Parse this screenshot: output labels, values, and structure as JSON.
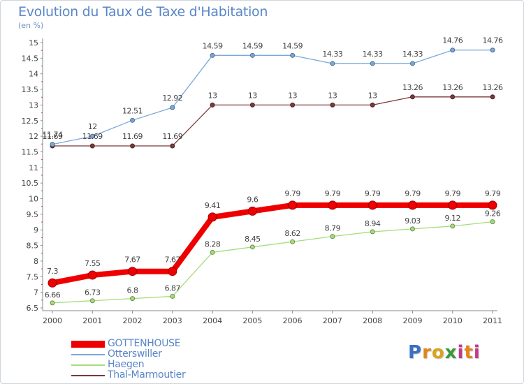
{
  "header": {
    "title": "Evolution du Taux de Taxe d'Habitation",
    "subtitle": "(en %)"
  },
  "logo": "Proxiti",
  "chart_data": {
    "type": "line",
    "title": "Evolution du Taux de Taxe d'Habitation",
    "subtitle": "(en %)",
    "x": [
      "2000",
      "2001",
      "2002",
      "2003",
      "2004",
      "2005",
      "2006",
      "2007",
      "2008",
      "2009",
      "2010",
      "2011"
    ],
    "ylim": [
      6.5,
      15
    ],
    "yticks": [
      "6.5",
      "7",
      "7.5",
      "8",
      "8.5",
      "9",
      "9.5",
      "10",
      "10.5",
      "11",
      "11.5",
      "12",
      "12.5",
      "13",
      "13.5",
      "14",
      "14.5",
      "15"
    ],
    "grid": false,
    "legend_position": "bottom-left",
    "series": [
      {
        "name": "GOTTENHOUSE",
        "color": "#ee0000",
        "values": [
          7.3,
          7.55,
          7.67,
          7.67,
          9.41,
          9.6,
          9.79,
          9.79,
          9.79,
          9.79,
          9.79,
          9.79
        ],
        "labels": [
          "7.3",
          "7.55",
          "7.67",
          "7.67",
          "9.41",
          "9.6",
          "9.79",
          "9.79",
          "9.79",
          "9.79",
          "9.79",
          "9.79"
        ]
      },
      {
        "name": "Otterswiller",
        "color": "#7aa8d8",
        "values": [
          11.74,
          12,
          12.51,
          12.92,
          14.59,
          14.59,
          14.59,
          14.33,
          14.33,
          14.33,
          14.76,
          14.76
        ],
        "labels": [
          "11.74",
          "12",
          "12.51",
          "12.92",
          "14.59",
          "14.59",
          "14.59",
          "14.33",
          "14.33",
          "14.33",
          "14.76",
          "14.76"
        ]
      },
      {
        "name": "Haegen",
        "color": "#a6dc7a",
        "values": [
          6.66,
          6.73,
          6.8,
          6.87,
          8.28,
          8.45,
          8.62,
          8.79,
          8.94,
          9.03,
          9.12,
          9.26
        ],
        "labels": [
          "6.66",
          "6.73",
          "6.8",
          "6.87",
          "8.28",
          "8.45",
          "8.62",
          "8.79",
          "8.94",
          "9.03",
          "9.12",
          "9.26"
        ]
      },
      {
        "name": "Thal-Marmoutier",
        "color": "#7a3a3a",
        "values": [
          11.69,
          11.69,
          11.69,
          11.69,
          13,
          13,
          13,
          13,
          13,
          13.26,
          13.26,
          13.26
        ],
        "labels": [
          "11.69",
          "11.69",
          "11.69",
          "11.69",
          "13",
          "13",
          "13",
          "13",
          "13",
          "13.26",
          "13.26",
          "13.26"
        ]
      }
    ]
  }
}
